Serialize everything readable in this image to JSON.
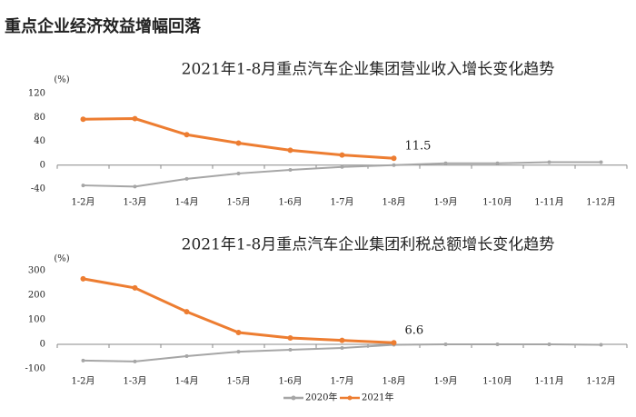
{
  "title": "重点企业经济效益增幅回落",
  "chart_data": [
    {
      "type": "line",
      "title": "2021年1-8月重点汽车企业集团营业收入增长变化趋势",
      "y_label": "(%)",
      "categories": [
        "1-2月",
        "1-3月",
        "1-4月",
        "1-5月",
        "1-6月",
        "1-7月",
        "1-8月",
        "1-9月",
        "1-10月",
        "1-11月",
        "1-12月"
      ],
      "series": [
        {
          "name": "2020年",
          "color": "#a6a6a6",
          "values": [
            -34,
            -36,
            -23,
            -14,
            -8,
            -3,
            0,
            3,
            3,
            5,
            5
          ]
        },
        {
          "name": "2021年",
          "color": "#ed7d31",
          "values": [
            77,
            78,
            51,
            37,
            25,
            17,
            11.5,
            null,
            null,
            null,
            null
          ],
          "value_labels": [
            null,
            null,
            null,
            null,
            null,
            null,
            "11.5",
            null,
            null,
            null,
            null
          ]
        }
      ],
      "ylim": [
        -40,
        120
      ],
      "yticks": [
        -40,
        0,
        40,
        80,
        120
      ],
      "grid": false
    },
    {
      "type": "line",
      "title": "2021年1-8月重点汽车企业集团利税总额增长变化趋势",
      "y_label": "(%)",
      "categories": [
        "1-2月",
        "1-3月",
        "1-4月",
        "1-5月",
        "1-6月",
        "1-7月",
        "1-8月",
        "1-9月",
        "1-10月",
        "1-11月",
        "1-12月"
      ],
      "series": [
        {
          "name": "2020年",
          "color": "#a6a6a6",
          "values": [
            -66,
            -70,
            -48,
            -30,
            -22,
            -15,
            -2,
            0,
            0,
            0,
            -2
          ]
        },
        {
          "name": "2021年",
          "color": "#ed7d31",
          "values": [
            267,
            230,
            133,
            48,
            26,
            16,
            6.6,
            null,
            null,
            null,
            null
          ],
          "value_labels": [
            null,
            null,
            null,
            null,
            null,
            null,
            "6.6",
            null,
            null,
            null,
            null
          ]
        }
      ],
      "ylim": [
        -100,
        300
      ],
      "yticks": [
        -100,
        0,
        100,
        200,
        300
      ],
      "grid": false
    }
  ]
}
